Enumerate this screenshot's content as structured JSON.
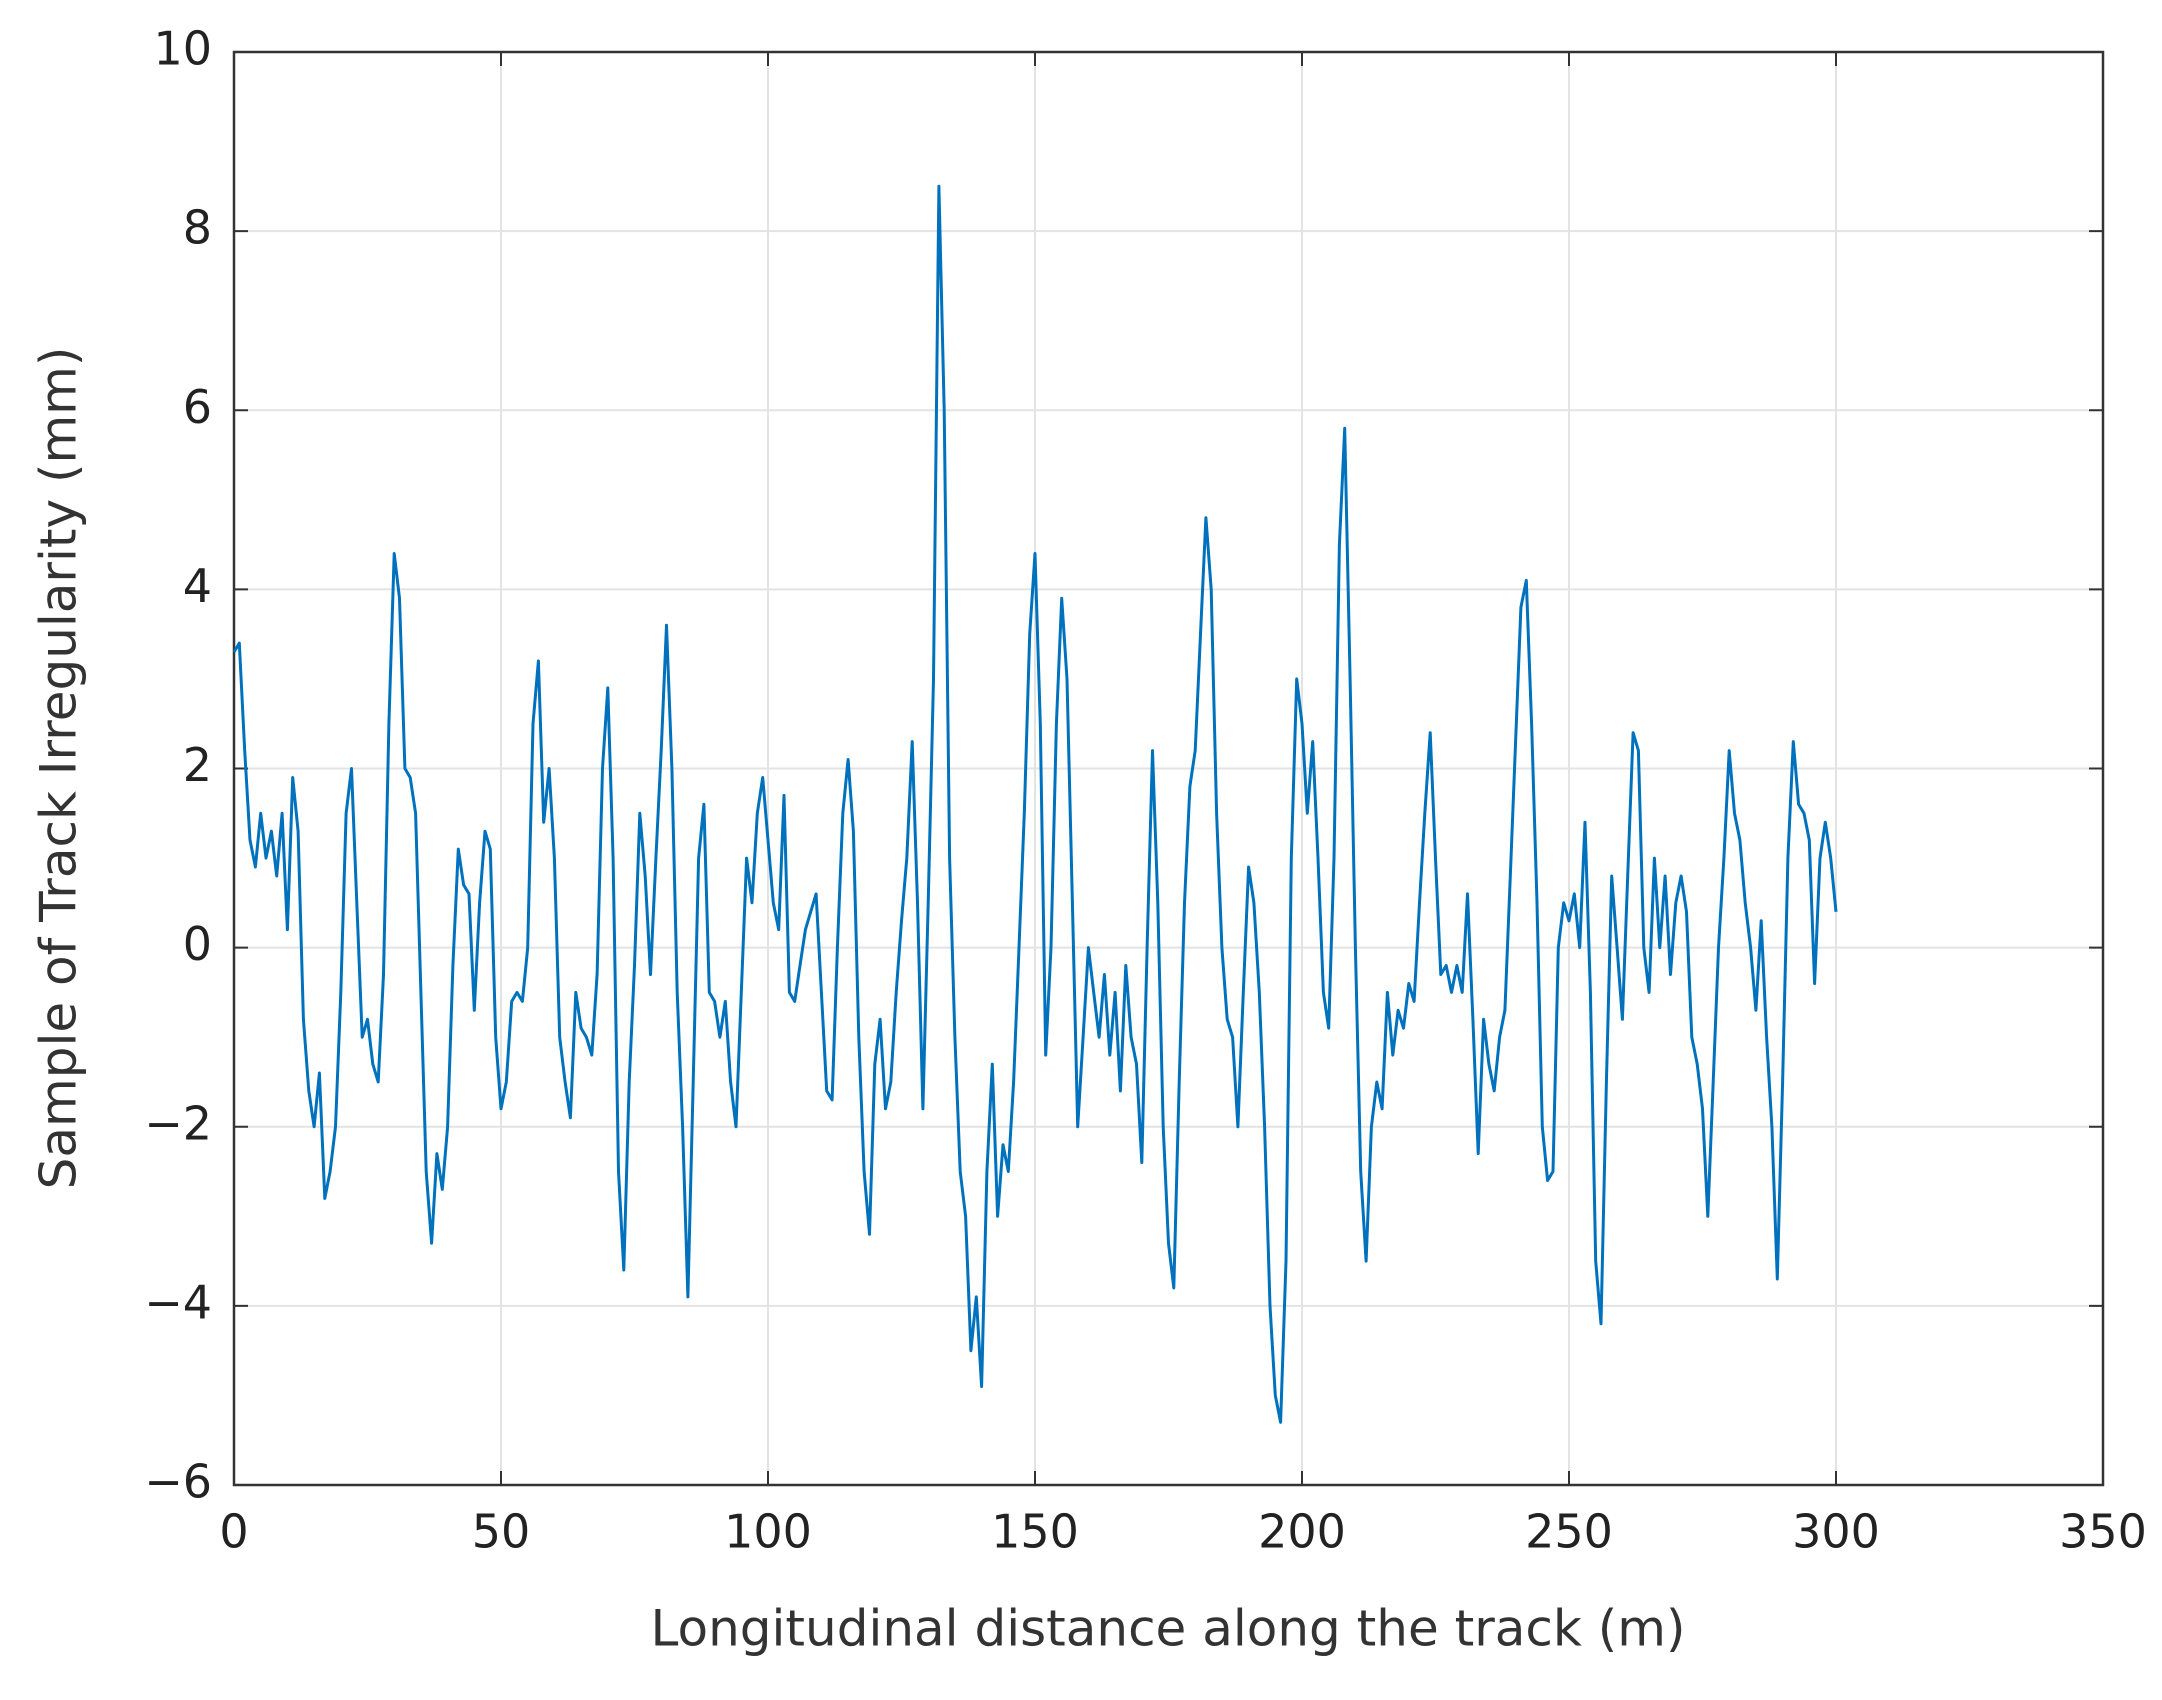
{
  "chart_data": {
    "type": "line",
    "xlabel": "Longitudinal distance along the track (m)",
    "ylabel": "Sample of Track Irregularity (mm)",
    "x": [
      0,
      1,
      2,
      3,
      4,
      5,
      6,
      7,
      8,
      9,
      10,
      11,
      12,
      13,
      14,
      15,
      16,
      17,
      18,
      19,
      20,
      21,
      22,
      23,
      24,
      25,
      26,
      27,
      28,
      29,
      30,
      31,
      32,
      33,
      34,
      35,
      36,
      37,
      38,
      39,
      40,
      41,
      42,
      43,
      44,
      45,
      46,
      47,
      48,
      49,
      50,
      51,
      52,
      53,
      54,
      55,
      56,
      57,
      58,
      59,
      60,
      61,
      62,
      63,
      64,
      65,
      66,
      67,
      68,
      69,
      70,
      71,
      72,
      73,
      74,
      75,
      76,
      77,
      78,
      79,
      80,
      81,
      82,
      83,
      84,
      85,
      86,
      87,
      88,
      89,
      90,
      91,
      92,
      93,
      94,
      95,
      96,
      97,
      98,
      99,
      100,
      101,
      102,
      103,
      104,
      105,
      106,
      107,
      108,
      109,
      110,
      111,
      112,
      113,
      114,
      115,
      116,
      117,
      118,
      119,
      120,
      121,
      122,
      123,
      124,
      125,
      126,
      127,
      128,
      129,
      130,
      131,
      132,
      133,
      134,
      135,
      136,
      137,
      138,
      139,
      140,
      141,
      142,
      143,
      144,
      145,
      146,
      147,
      148,
      149,
      150,
      151,
      152,
      153,
      154,
      155,
      156,
      157,
      158,
      159,
      160,
      161,
      162,
      163,
      164,
      165,
      166,
      167,
      168,
      169,
      170,
      171,
      172,
      173,
      174,
      175,
      176,
      177,
      178,
      179,
      180,
      181,
      182,
      183,
      184,
      185,
      186,
      187,
      188,
      189,
      190,
      191,
      192,
      193,
      194,
      195,
      196,
      197,
      198,
      199,
      200,
      201,
      202,
      203,
      204,
      205,
      206,
      207,
      208,
      209,
      210,
      211,
      212,
      213,
      214,
      215,
      216,
      217,
      218,
      219,
      220,
      221,
      222,
      223,
      224,
      225,
      226,
      227,
      228,
      229,
      230,
      231,
      232,
      233,
      234,
      235,
      236,
      237,
      238,
      239,
      240,
      241,
      242,
      243,
      244,
      245,
      246,
      247,
      248,
      249,
      250,
      251,
      252,
      253,
      254,
      255,
      256,
      257,
      258,
      259,
      260,
      261,
      262,
      263,
      264,
      265,
      266,
      267,
      268,
      269,
      270,
      271,
      272,
      273,
      274,
      275,
      276,
      277,
      278,
      279,
      280,
      281,
      282,
      283,
      284,
      285,
      286,
      287,
      288,
      289,
      290,
      291,
      292,
      293,
      294,
      295,
      296,
      297,
      298,
      299,
      300
    ],
    "series": [
      {
        "color": "#0072bd",
        "values": [
          3.3,
          3.4,
          2.2,
          1.2,
          0.9,
          1.5,
          1.0,
          1.3,
          0.8,
          1.5,
          0.2,
          1.9,
          1.3,
          -0.8,
          -1.6,
          -2.0,
          -1.4,
          -2.8,
          -2.5,
          -2.0,
          -0.5,
          1.5,
          2.0,
          0.5,
          -1.0,
          -0.8,
          -1.3,
          -1.5,
          -0.3,
          2.5,
          4.4,
          3.9,
          2.0,
          1.9,
          1.5,
          -0.5,
          -2.5,
          -3.3,
          -2.3,
          -2.7,
          -2.0,
          -0.2,
          1.1,
          0.7,
          0.6,
          -0.7,
          0.5,
          1.3,
          1.1,
          -1.0,
          -1.8,
          -1.5,
          -0.6,
          -0.5,
          -0.6,
          0.0,
          2.5,
          3.2,
          1.4,
          2.0,
          1.0,
          -1.0,
          -1.5,
          -1.9,
          -0.5,
          -0.9,
          -1.0,
          -1.2,
          -0.3,
          2.0,
          2.9,
          1.0,
          -2.5,
          -3.6,
          -1.5,
          -0.2,
          1.5,
          0.8,
          -0.3,
          1.0,
          2.2,
          3.6,
          2.0,
          -0.5,
          -2.0,
          -3.9,
          -1.5,
          1.0,
          1.6,
          -0.5,
          -0.6,
          -1.0,
          -0.6,
          -1.5,
          -2.0,
          -0.5,
          1.0,
          0.5,
          1.5,
          1.9,
          1.2,
          0.5,
          0.2,
          1.7,
          -0.5,
          -0.6,
          -0.2,
          0.2,
          0.4,
          0.6,
          -0.5,
          -1.6,
          -1.7,
          0.0,
          1.5,
          2.1,
          1.3,
          -1.0,
          -2.5,
          -3.2,
          -1.3,
          -0.8,
          -1.8,
          -1.5,
          -0.5,
          0.3,
          1.0,
          2.3,
          0.5,
          -1.8,
          0.5,
          3.0,
          8.5,
          6.0,
          1.0,
          -1.0,
          -2.5,
          -3.0,
          -4.5,
          -3.9,
          -4.9,
          -2.5,
          -1.3,
          -3.0,
          -2.2,
          -2.5,
          -1.5,
          0.0,
          1.5,
          3.5,
          4.4,
          2.5,
          -1.2,
          0.0,
          2.5,
          3.9,
          3.0,
          0.5,
          -2.0,
          -1.0,
          0.0,
          -0.5,
          -1.0,
          -0.3,
          -1.2,
          -0.5,
          -1.6,
          -0.2,
          -1.0,
          -1.3,
          -2.4,
          0.0,
          2.2,
          0.5,
          -2.0,
          -3.3,
          -3.8,
          -1.5,
          0.5,
          1.8,
          2.2,
          3.5,
          4.8,
          4.0,
          1.5,
          0.0,
          -0.8,
          -1.0,
          -2.0,
          -0.5,
          0.9,
          0.5,
          -0.5,
          -2.0,
          -4.0,
          -5.0,
          -5.3,
          -3.5,
          1.0,
          3.0,
          2.5,
          1.5,
          2.3,
          1.0,
          -0.5,
          -0.9,
          1.0,
          4.5,
          5.8,
          3.0,
          0.0,
          -2.5,
          -3.5,
          -2.0,
          -1.5,
          -1.8,
          -0.5,
          -1.2,
          -0.7,
          -0.9,
          -0.4,
          -0.6,
          0.5,
          1.5,
          2.4,
          1.0,
          -0.3,
          -0.2,
          -0.5,
          -0.2,
          -0.5,
          0.6,
          -0.8,
          -2.3,
          -0.8,
          -1.3,
          -1.6,
          -1.0,
          -0.7,
          0.8,
          2.3,
          3.8,
          4.1,
          2.5,
          0.5,
          -2.0,
          -2.6,
          -2.5,
          0.0,
          0.5,
          0.3,
          0.6,
          0.0,
          1.4,
          -0.5,
          -3.5,
          -4.2,
          -1.5,
          0.8,
          0.0,
          -0.8,
          0.8,
          2.4,
          2.2,
          0.0,
          -0.5,
          1.0,
          0.0,
          0.8,
          -0.3,
          0.5,
          0.8,
          0.4,
          -1.0,
          -1.3,
          -1.8,
          -3.0,
          -1.5,
          0.0,
          1.0,
          2.2,
          1.5,
          1.2,
          0.5,
          0.0,
          -0.7,
          0.3,
          -1.0,
          -2.0,
          -3.7,
          -1.5,
          1.0,
          2.3,
          1.6,
          1.5,
          1.2,
          -0.4,
          1.0,
          1.4,
          1.0,
          0.4
        ]
      }
    ],
    "xlim": [
      0,
      350
    ],
    "xticks": [
      0,
      50,
      100,
      150,
      200,
      250,
      300,
      350
    ],
    "ylim": [
      -6,
      10
    ],
    "yticks": [
      {
        "value": -6,
        "label": "−6"
      },
      {
        "value": -4,
        "label": "−4"
      },
      {
        "value": -2,
        "label": "−2"
      },
      0,
      2,
      4,
      6,
      8,
      10
    ],
    "grid": true
  }
}
